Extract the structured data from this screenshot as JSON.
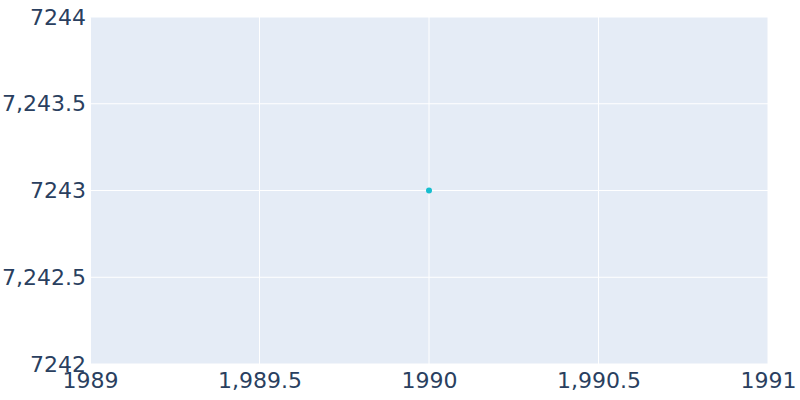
{
  "chart_data": {
    "type": "scatter",
    "x": [
      1990
    ],
    "values": [
      7243
    ],
    "color": "#17becf",
    "xlim": [
      1989,
      1991
    ],
    "xticks": [
      1989,
      {
        "value": 1989.5,
        "label": "1,989.5"
      },
      1990,
      {
        "value": 1990.5,
        "label": "1,990.5"
      },
      1991
    ],
    "ylim": [
      7242,
      7244
    ],
    "yticks": [
      7242,
      {
        "value": 7242.5,
        "label": "7,242.5"
      },
      7243,
      {
        "value": 7243.5,
        "label": "7,243.5"
      },
      7244
    ],
    "grid": true
  }
}
